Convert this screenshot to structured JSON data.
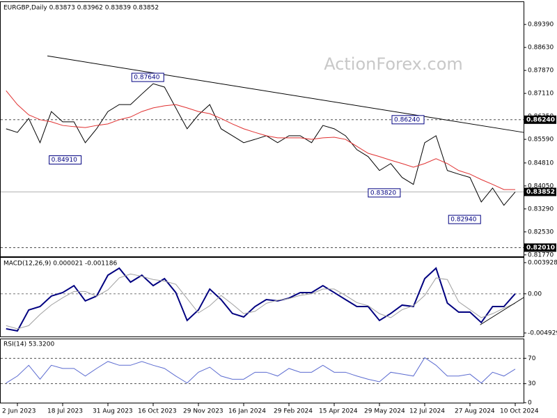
{
  "watermark": "ActionForex.com",
  "chart_data": [
    {
      "type": "line",
      "title": "EURGBP,Daily  0.83873 0.83962 0.83839 0.83852",
      "categories": [
        null,
        "2 Jun 2023",
        null,
        null,
        null,
        "18 Jul 2023",
        null,
        null,
        null,
        "31 Aug 2023",
        null,
        null,
        null,
        "16 Oct 2023",
        null,
        null,
        null,
        "29 Nov 2023",
        null,
        null,
        null,
        "16 Jan 2024",
        null,
        null,
        null,
        "29 Feb 2024",
        null,
        null,
        null,
        "15 Apr 2024",
        null,
        null,
        null,
        "29 May 2024",
        null,
        null,
        null,
        "12 Jul 2024",
        null,
        null,
        null,
        "27 Aug 2024",
        null,
        null,
        null,
        "10 Oct 2024"
      ],
      "series": [
        {
          "color": "#000000",
          "values": [
            0.8594,
            0.8582,
            0.8628,
            0.8548,
            0.8651,
            0.8617,
            0.8617,
            0.8548,
            0.8594,
            0.8651,
            0.8674,
            0.8674,
            0.8709,
            0.8743,
            0.8732,
            0.8663,
            0.8594,
            0.864,
            0.8674,
            0.8594,
            0.8571,
            0.8548,
            0.8559,
            0.8571,
            0.8548,
            0.8571,
            0.8571,
            0.8548,
            0.8605,
            0.8594,
            0.8571,
            0.8525,
            0.8502,
            0.8456,
            0.8479,
            0.8433,
            0.841,
            0.8548,
            0.8571,
            0.8456,
            0.8444,
            0.8433,
            0.8352,
            0.8398,
            0.8341,
            0.8385
          ]
        },
        {
          "color": "#e03030",
          "values": [
            0.872,
            0.8674,
            0.864,
            0.8624,
            0.8617,
            0.8605,
            0.8601,
            0.8598,
            0.8605,
            0.861,
            0.8624,
            0.8633,
            0.8651,
            0.8663,
            0.867,
            0.8674,
            0.8663,
            0.8651,
            0.8644,
            0.8628,
            0.861,
            0.8594,
            0.8582,
            0.8571,
            0.8564,
            0.8564,
            0.8564,
            0.8559,
            0.8564,
            0.8566,
            0.8559,
            0.8536,
            0.8513,
            0.8502,
            0.849,
            0.8479,
            0.8467,
            0.8479,
            0.8495,
            0.8479,
            0.8456,
            0.8444,
            0.8426,
            0.841,
            0.8393,
            0.8393
          ]
        }
      ],
      "trendline": {
        "color": "#000000",
        "x": [
          3.65,
          45.74
        ],
        "y": [
          0.8835,
          0.8582
        ]
      },
      "levels": [
        {
          "value": 0.8624,
          "label": "0.86240",
          "style": "dashed"
        },
        {
          "value": 0.83852,
          "label": "0.83852",
          "style": "solid"
        },
        {
          "value": 0.8201,
          "label": "0.82010",
          "style": "dashed"
        }
      ],
      "annotations": [
        {
          "x": 14,
          "value": 0.8764,
          "label": "0.87640"
        },
        {
          "x": 6.7,
          "value": 0.8491,
          "label": "0.84910"
        },
        {
          "x": 34.9,
          "value": 0.8382,
          "label": "0.83820"
        },
        {
          "x": 37,
          "value": 0.8624,
          "label": "0.86240"
        },
        {
          "x": 42,
          "value": 0.8294,
          "label": "0.82940"
        }
      ],
      "ylim": [
        0.8172,
        0.9013
      ],
      "yticks": [
        {
          "value": 0.8939,
          "label": "0.89390"
        },
        {
          "value": 0.8863,
          "label": "0.88630"
        },
        {
          "value": 0.8787,
          "label": "0.87870"
        },
        {
          "value": 0.8711,
          "label": "0.87110"
        },
        {
          "value": 0.8635,
          "label": "0.86350"
        },
        {
          "value": 0.8559,
          "label": "0.85590"
        },
        {
          "value": 0.8481,
          "label": "0.84810"
        },
        {
          "value": 0.8405,
          "label": "0.84050"
        },
        {
          "value": 0.8329,
          "label": "0.83290"
        },
        {
          "value": 0.8253,
          "label": "0.82530"
        },
        {
          "value": 0.8177,
          "label": "0.81770"
        }
      ]
    },
    {
      "type": "line",
      "title": "MACD(12,26,9) 0.000021 -0.001186",
      "series": [
        {
          "color": "#000080",
          "values": [
            -0.0044,
            -0.00467,
            -0.00203,
            -0.0016,
            -0.00028,
            0.00016,
            0.00103,
            -0.00089,
            -0.00028,
            0.00235,
            0.00323,
            0.00147,
            0.00235,
            0.00103,
            0.00191,
            0.00016,
            -0.00335,
            -0.00203,
            0.0006,
            -0.00072,
            -0.00247,
            -0.00291,
            -0.0016,
            -0.00072,
            -0.00089,
            -0.00054,
            0.00016,
            0.00016,
            0.00103,
            0.00016,
            -0.00072,
            -0.0016,
            -0.0016,
            -0.00335,
            -0.00247,
            -0.00142,
            -0.0016,
            0.00191,
            0.00323,
            -0.00116,
            -0.0023,
            -0.0023,
            -0.00361,
            -0.0016,
            -0.0016,
            2e-05
          ]
        },
        {
          "color": "#a0a0a0",
          "values": [
            -0.004,
            -0.0044,
            -0.004,
            -0.0026,
            -0.0014,
            -0.0005,
            0.0003,
            0.0003,
            -0.0003,
            0.0005,
            0.002,
            0.0025,
            0.0022,
            0.0018,
            0.0016,
            0.0012,
            -0.0006,
            -0.0024,
            -0.0015,
            -0.0002,
            -0.0013,
            -0.0025,
            -0.0022,
            -0.0012,
            -0.0008,
            -0.0006,
            -0.0002,
            0.0,
            0.0006,
            0.0006,
            -0.0002,
            -0.0011,
            -0.0015,
            -0.0025,
            -0.003,
            -0.002,
            -0.0015,
            -0.0002,
            0.002,
            0.0018,
            -0.001,
            -0.002,
            -0.003,
            -0.0025,
            -0.0018,
            -0.0012
          ]
        }
      ],
      "trendline": {
        "color": "#000000",
        "x": [
          41.9,
          45.74
        ],
        "y": [
          -0.0039,
          -0.00047
        ]
      },
      "ylim": [
        -0.00537,
        0.00454
      ],
      "yticks": [
        0.003928,
        {
          "value": 0,
          "label": "0.00"
        },
        -0.004929
      ]
    },
    {
      "type": "line",
      "title": "RSI(14) 53.3200",
      "series": [
        {
          "color": "#5b6bd0",
          "values": [
            31,
            42,
            59,
            37,
            59,
            54,
            54,
            42,
            54,
            65,
            59,
            59,
            65,
            59,
            54,
            42,
            31,
            48,
            56,
            42,
            37,
            37,
            48,
            48,
            42,
            54,
            48,
            48,
            59,
            48,
            48,
            42,
            37,
            33,
            48,
            45,
            42,
            71,
            59,
            42,
            42,
            45,
            31,
            48,
            42,
            53
          ]
        }
      ],
      "levels": [
        {
          "value": 70,
          "style": "dashed"
        },
        {
          "value": 30,
          "style": "dashed"
        }
      ],
      "ylim": [
        0,
        100
      ],
      "yticks": [
        70,
        30,
        0
      ]
    }
  ]
}
